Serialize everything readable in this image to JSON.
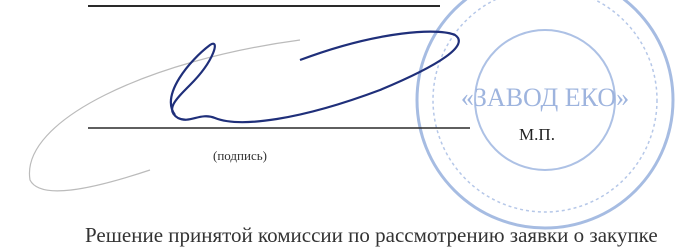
{
  "signature_block": {
    "signature_caption": "(подпись)",
    "seal_mark": "М.П.",
    "stamp_text": "«ЗАВОД ЕКО»"
  },
  "footer_text": "Решение принятой комиссии по рассмотрению заявки о закупке"
}
